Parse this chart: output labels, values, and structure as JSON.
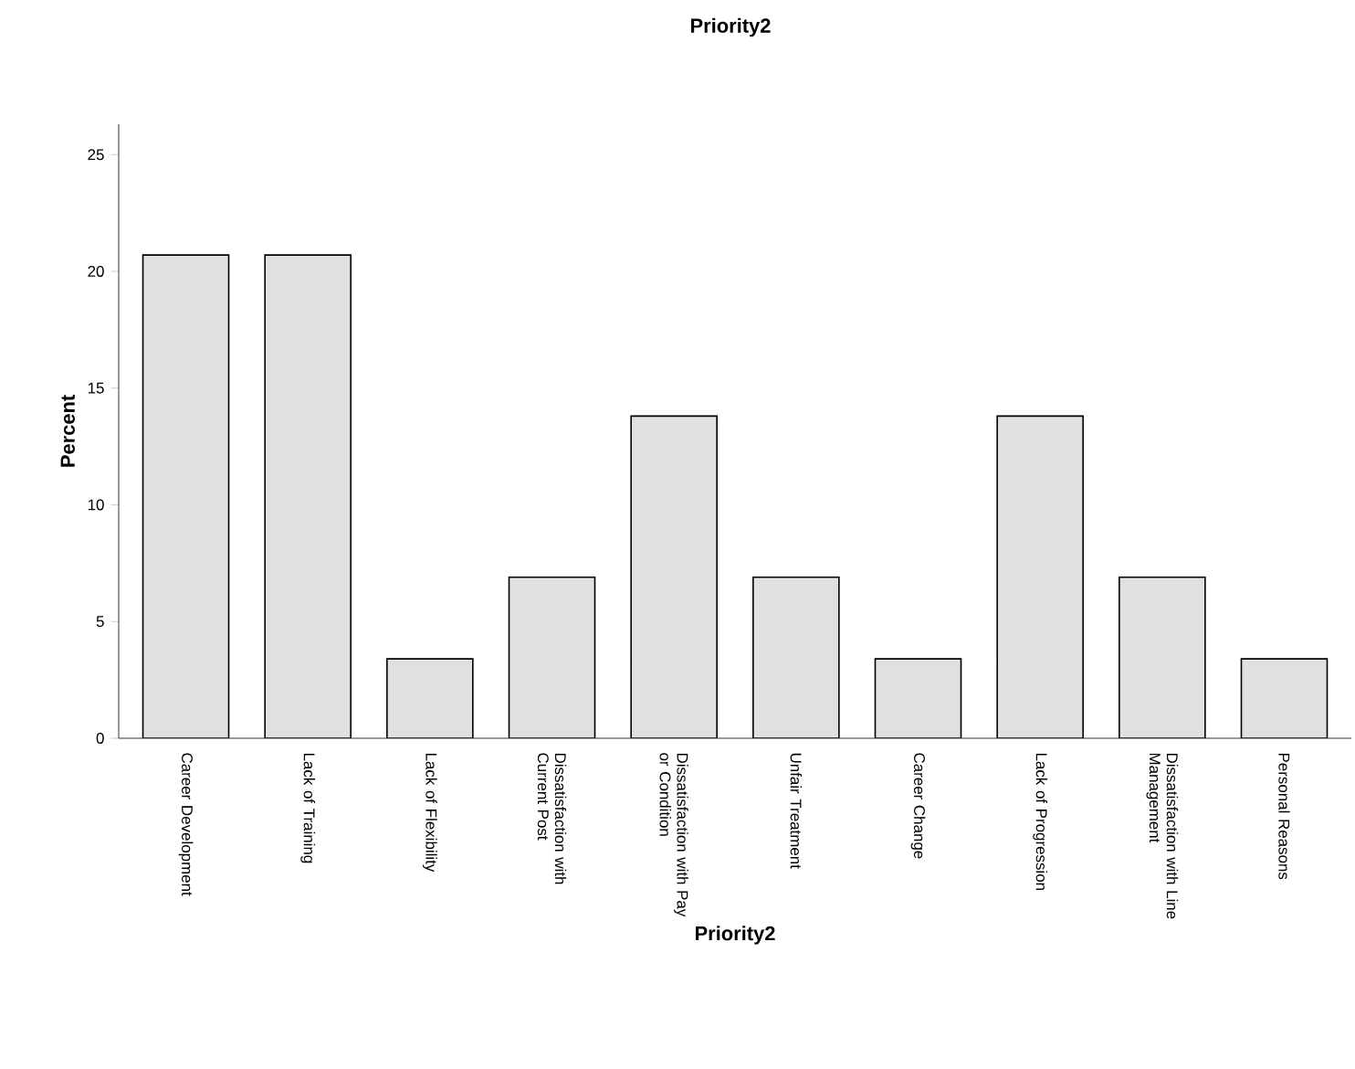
{
  "chart_data": {
    "type": "bar",
    "title": "Priority2",
    "xlabel": "Priority2",
    "ylabel": "Percent",
    "categories": [
      "Career Development",
      "Lack of Training",
      "Lack of Flexibility",
      "Dissatisfaction with Current Post",
      "Dissatisfaction with Pay or Condition",
      "Unfair Treatment",
      "Career Change",
      "Lack of Progression",
      "Dissatisfaction with Line Management",
      "Personal Reasons"
    ],
    "values": [
      20.7,
      20.7,
      3.4,
      6.9,
      13.8,
      6.9,
      3.4,
      13.8,
      6.9,
      3.4
    ],
    "color": "#e0e0e0",
    "ylim": [
      0,
      26.3
    ],
    "yticks": [
      0,
      5,
      10,
      15,
      20,
      25
    ],
    "grid": false
  }
}
